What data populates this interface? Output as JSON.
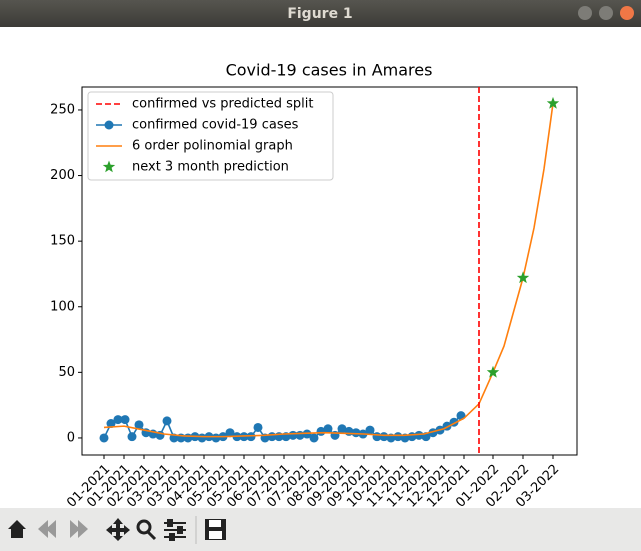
{
  "window": {
    "title": "Figure 1"
  },
  "chart_data": {
    "type": "line",
    "title": "Covid-19 cases in Amares",
    "xlim": [
      -22,
      473
    ],
    "ylim": [
      -13,
      267.5
    ],
    "yticks": [
      0,
      50,
      100,
      150,
      200,
      250
    ],
    "xticks": [
      {
        "value": 0,
        "label": "01-2021"
      },
      {
        "value": 20,
        "label": "01-2021"
      },
      {
        "value": 40,
        "label": "02-2021"
      },
      {
        "value": 60,
        "label": "03-2021"
      },
      {
        "value": 80,
        "label": "03-2021"
      },
      {
        "value": 100,
        "label": "04-2021"
      },
      {
        "value": 120,
        "label": "05-2021"
      },
      {
        "value": 140,
        "label": "05-2021"
      },
      {
        "value": 160,
        "label": "06-2021"
      },
      {
        "value": 180,
        "label": "07-2021"
      },
      {
        "value": 200,
        "label": "07-2021"
      },
      {
        "value": 220,
        "label": "08-2021"
      },
      {
        "value": 240,
        "label": "09-2021"
      },
      {
        "value": 260,
        "label": "09-2021"
      },
      {
        "value": 280,
        "label": "10-2021"
      },
      {
        "value": 300,
        "label": "11-2021"
      },
      {
        "value": 320,
        "label": "11-2021"
      },
      {
        "value": 340,
        "label": "12-2021"
      },
      {
        "value": 360,
        "label": "12-2021"
      },
      {
        "value": 389,
        "label": "01-2022"
      },
      {
        "value": 419,
        "label": "02-2022"
      },
      {
        "value": 449,
        "label": "03-2022"
      }
    ],
    "legend": "upper left",
    "series": [
      {
        "name": "confirmed vs predicted split",
        "color": "#ff0000",
        "kind": "vline",
        "x": [
          375
        ]
      },
      {
        "name": "confirmed covid-19 cases",
        "color": "#1f77b4",
        "kind": "line-marker",
        "x": [
          0,
          7,
          14,
          21,
          28,
          35,
          42,
          49,
          56,
          63,
          70,
          77,
          84,
          91,
          98,
          105,
          112,
          119,
          126,
          133,
          140,
          147,
          154,
          161,
          168,
          175,
          182,
          189,
          196,
          203,
          210,
          217,
          224,
          231,
          238,
          245,
          252,
          259,
          266,
          273,
          280,
          287,
          294,
          301,
          308,
          315,
          322,
          329,
          336,
          343,
          350,
          357
        ],
        "values": [
          0,
          11,
          14,
          14,
          1,
          10,
          4,
          3,
          2,
          13,
          0,
          0,
          0,
          1,
          0,
          1,
          0,
          1,
          4,
          1,
          1,
          1,
          8,
          0,
          1,
          1,
          1,
          2,
          2,
          3,
          0,
          5,
          7,
          2,
          7,
          5,
          4,
          3,
          6,
          1,
          1,
          0,
          1,
          0,
          1,
          2,
          1,
          4,
          6,
          9,
          12,
          17
        ]
      },
      {
        "name": "6 order polinomial graph",
        "color": "#ff7f0e",
        "kind": "line",
        "x": [
          0,
          20,
          40,
          60,
          80,
          100,
          120,
          140,
          160,
          180,
          200,
          220,
          240,
          260,
          280,
          300,
          320,
          340,
          360,
          375,
          389,
          400,
          419,
          430,
          440,
          449
        ],
        "values": [
          8,
          9,
          6,
          3,
          1.5,
          1,
          1,
          1.5,
          2,
          3,
          3.5,
          4,
          3.5,
          3,
          2,
          2,
          3,
          7,
          15,
          26,
          50,
          70,
          122,
          160,
          205,
          255
        ]
      },
      {
        "name": "next 3 month prediction",
        "color": "#2ca02c",
        "kind": "star",
        "x": [
          389,
          419,
          449
        ],
        "values": [
          50,
          122,
          255
        ]
      }
    ]
  }
}
